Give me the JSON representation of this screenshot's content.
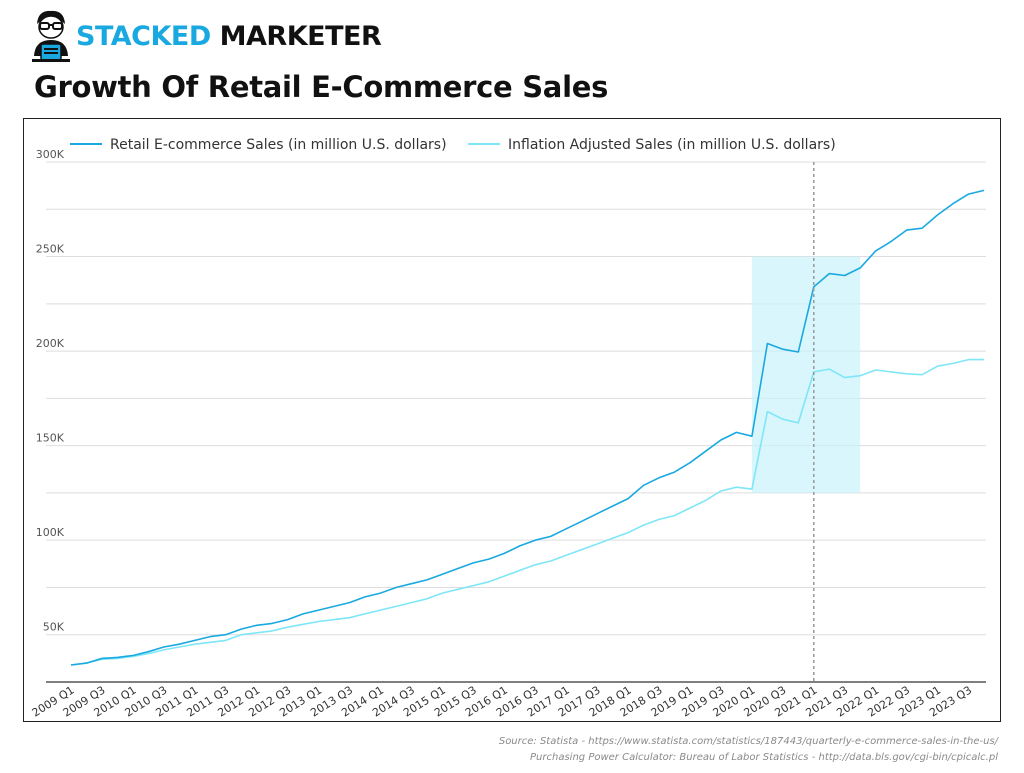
{
  "brand": {
    "name_part1": "STACKED",
    "name_part2": "MARKETER",
    "color_primary": "#19a9e0",
    "color_dark": "#111111"
  },
  "title": "Growth Of Retail E-Commerce Sales",
  "source": {
    "line1": "Source: Statista - https://www.statista.com/statistics/187443/quarterly-e-commerce-sales-in-the-us/",
    "line2": "Purchasing Power Calculator: Bureau of Labor Statistics - http://data.bls.gov/cgi-bin/cpicalc.pl"
  },
  "chart_data": {
    "type": "line",
    "title": "",
    "xlabel": "",
    "ylabel": "",
    "ylim": [
      25000,
      300000
    ],
    "yticks": [
      50000,
      100000,
      150000,
      200000,
      250000,
      300000
    ],
    "ytick_labels": [
      "50K",
      "100K",
      "150K",
      "200K",
      "250K",
      "300K"
    ],
    "grid": "horizontal",
    "legend_position": "top-left",
    "x": [
      "2009 Q1",
      "2009 Q2",
      "2009 Q3",
      "2009 Q4",
      "2010 Q1",
      "2010 Q2",
      "2010 Q3",
      "2010 Q4",
      "2011 Q1",
      "2011 Q2",
      "2011 Q3",
      "2011 Q4",
      "2012 Q1",
      "2012 Q2",
      "2012 Q3",
      "2012 Q4",
      "2013 Q1",
      "2013 Q2",
      "2013 Q3",
      "2013 Q4",
      "2014 Q1",
      "2014 Q2",
      "2014 Q3",
      "2014 Q4",
      "2015 Q1",
      "2015 Q2",
      "2015 Q3",
      "2015 Q4",
      "2016 Q1",
      "2016 Q2",
      "2016 Q3",
      "2016 Q4",
      "2017 Q1",
      "2017 Q2",
      "2017 Q3",
      "2017 Q4",
      "2018 Q1",
      "2018 Q2",
      "2018 Q3",
      "2018 Q4",
      "2019 Q1",
      "2019 Q2",
      "2019 Q3",
      "2019 Q4",
      "2020 Q1",
      "2020 Q2",
      "2020 Q3",
      "2020 Q4",
      "2021 Q1",
      "2021 Q2",
      "2021 Q3",
      "2021 Q4",
      "2022 Q1",
      "2022 Q2",
      "2022 Q3",
      "2022 Q4",
      "2023 Q1",
      "2023 Q2",
      "2023 Q3",
      "2023 Q4"
    ],
    "xtick_labels": [
      "2009 Q1",
      "2009 Q3",
      "2010 Q1",
      "2010 Q3",
      "2011 Q1",
      "2011 Q3",
      "2012 Q1",
      "2012 Q3",
      "2013 Q1",
      "2013 Q3",
      "2014 Q1",
      "2014 Q3",
      "2015 Q1",
      "2015 Q3",
      "2016 Q1",
      "2016 Q3",
      "2017 Q1",
      "2017 Q3",
      "2018 Q1",
      "2018 Q3",
      "2019 Q1",
      "2019 Q3",
      "2020 Q1",
      "2020 Q3",
      "2021 Q1",
      "2021 Q3",
      "2022 Q1",
      "2022 Q3",
      "2023 Q1",
      "2023 Q3"
    ],
    "series": [
      {
        "name": "Retail E-commerce Sales (in million U.S. dollars)",
        "color": "#19a9e0",
        "values": [
          34000,
          35000,
          37500,
          38000,
          39000,
          41000,
          43500,
          45000,
          47000,
          49000,
          50000,
          53000,
          55000,
          56000,
          58000,
          61000,
          63000,
          65000,
          67000,
          70000,
          72000,
          75000,
          77000,
          79000,
          82000,
          85000,
          88000,
          90000,
          93000,
          97000,
          100000,
          102000,
          106000,
          110000,
          114000,
          118000,
          122000,
          129000,
          133000,
          136000,
          141000,
          147000,
          153000,
          157000,
          155000,
          204000,
          201000,
          199500,
          234000,
          241000,
          240000,
          244000,
          253000,
          258000,
          264000,
          265000,
          272000,
          278000,
          283000,
          285000
        ]
      },
      {
        "name": "Inflation Adjusted Sales (in million U.S. dollars)",
        "color": "#7fe6f7",
        "values": [
          34000,
          35000,
          37000,
          37500,
          38500,
          40000,
          42000,
          43500,
          45000,
          46000,
          47000,
          50000,
          51000,
          52000,
          54000,
          55500,
          57000,
          58000,
          59000,
          61000,
          63000,
          65000,
          67000,
          69000,
          72000,
          74000,
          76000,
          78000,
          81000,
          84000,
          87000,
          89000,
          92000,
          95000,
          98000,
          101000,
          104000,
          108000,
          111000,
          113000,
          117000,
          121000,
          126000,
          128000,
          127000,
          168000,
          164000,
          162000,
          189000,
          190500,
          186000,
          187000,
          190000,
          189000,
          188000,
          187500,
          192000,
          193500,
          195500,
          195500
        ]
      }
    ],
    "annotations": [
      {
        "type": "dashed-vertical-line",
        "at_x": "2021 Q1",
        "color": "#999999"
      },
      {
        "type": "highlight-region",
        "x_from": "2020 Q1",
        "x_to": "2021 Q4",
        "y_from": 125000,
        "y_to": 250000,
        "color": "#c8f2fb"
      }
    ]
  }
}
